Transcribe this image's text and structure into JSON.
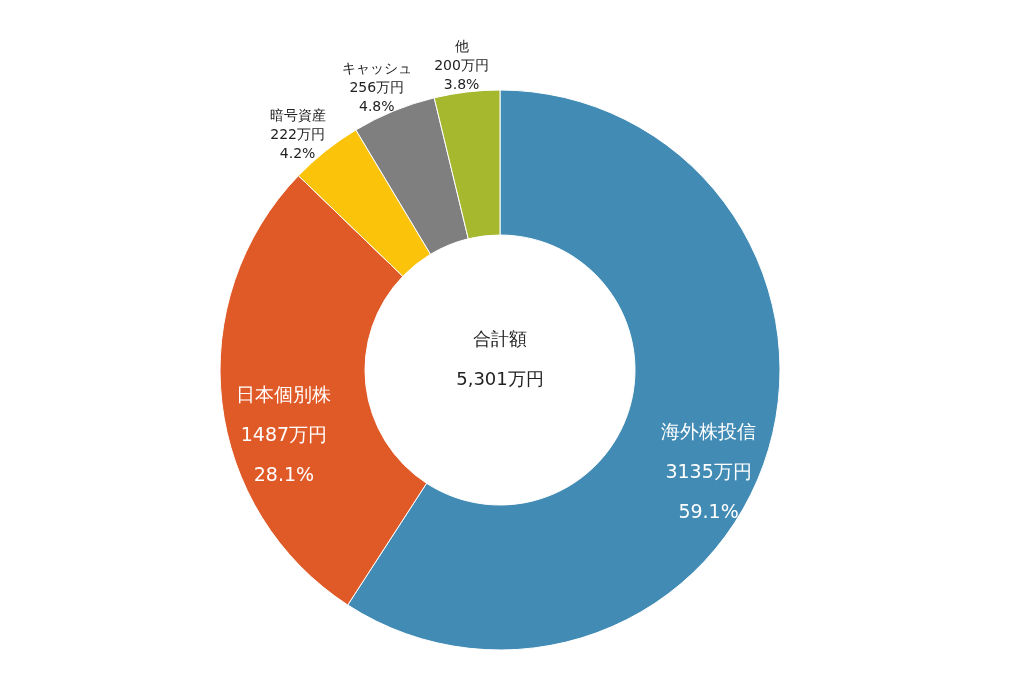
{
  "chart_data": {
    "type": "donut",
    "categories": [
      "海外株投信",
      "日本個別株",
      "暗号資産",
      "キャッシュ",
      "他"
    ],
    "values": [
      3135,
      1487,
      222,
      256,
      200
    ],
    "colors": [
      "#428bb5",
      "#e05a28",
      "#fcc30b",
      "#7f7f7f",
      "#a5b82e"
    ],
    "value_labels": [
      "3135万円\n59.1%",
      "1487万円\n28.1%",
      "222万円\n4.2%",
      "256万円\n4.8%",
      "200万円\n3.8%"
    ],
    "annotations": [
      "合計額",
      "5,301万円"
    ]
  }
}
